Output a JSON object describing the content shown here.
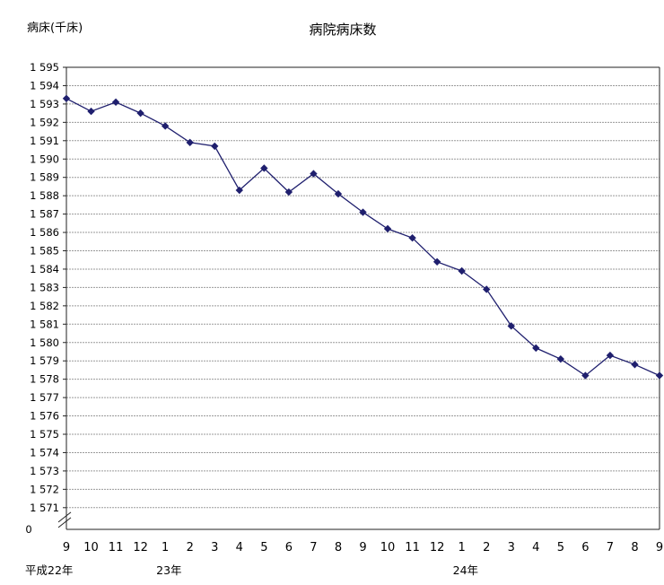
{
  "chart_data": {
    "type": "line",
    "title": "病院病床数",
    "ylabel": "病床(千床)",
    "xlabel": "",
    "ylim": [
      1571,
      1595
    ],
    "y_ticks": [
      "1 595",
      "1 594",
      "1 593",
      "1 592",
      "1 591",
      "1 590",
      "1 589",
      "1 588",
      "1 587",
      "1 586",
      "1 585",
      "1 584",
      "1 583",
      "1 582",
      "1 581",
      "1 580",
      "1 579",
      "1 578",
      "1 577",
      "1 576",
      "1 575",
      "1 574",
      "1 573",
      "1 572",
      "1 571"
    ],
    "y_zero_label": "0",
    "axis_break": true,
    "grid": true,
    "categories": [
      "9",
      "10",
      "11",
      "12",
      "1",
      "2",
      "3",
      "4",
      "5",
      "6",
      "7",
      "8",
      "9",
      "10",
      "11",
      "12",
      "1",
      "2",
      "3",
      "4",
      "5",
      "6",
      "7",
      "8",
      "9"
    ],
    "year_labels": [
      {
        "text": "平成22年",
        "index": 0
      },
      {
        "text": "23年",
        "index": 4
      },
      {
        "text": "24年",
        "index": 16
      }
    ],
    "series": [
      {
        "values": [
          1593.3,
          1592.6,
          1593.1,
          1592.5,
          1591.8,
          1590.9,
          1590.7,
          1588.3,
          1589.5,
          1588.2,
          1589.2,
          1588.1,
          1587.1,
          1586.2,
          1585.7,
          1584.4,
          1583.9,
          1582.9,
          1580.9,
          1579.7,
          1579.1,
          1578.2,
          1579.3,
          1578.8,
          1578.2
        ],
        "color": "#1f1f6e"
      }
    ]
  }
}
